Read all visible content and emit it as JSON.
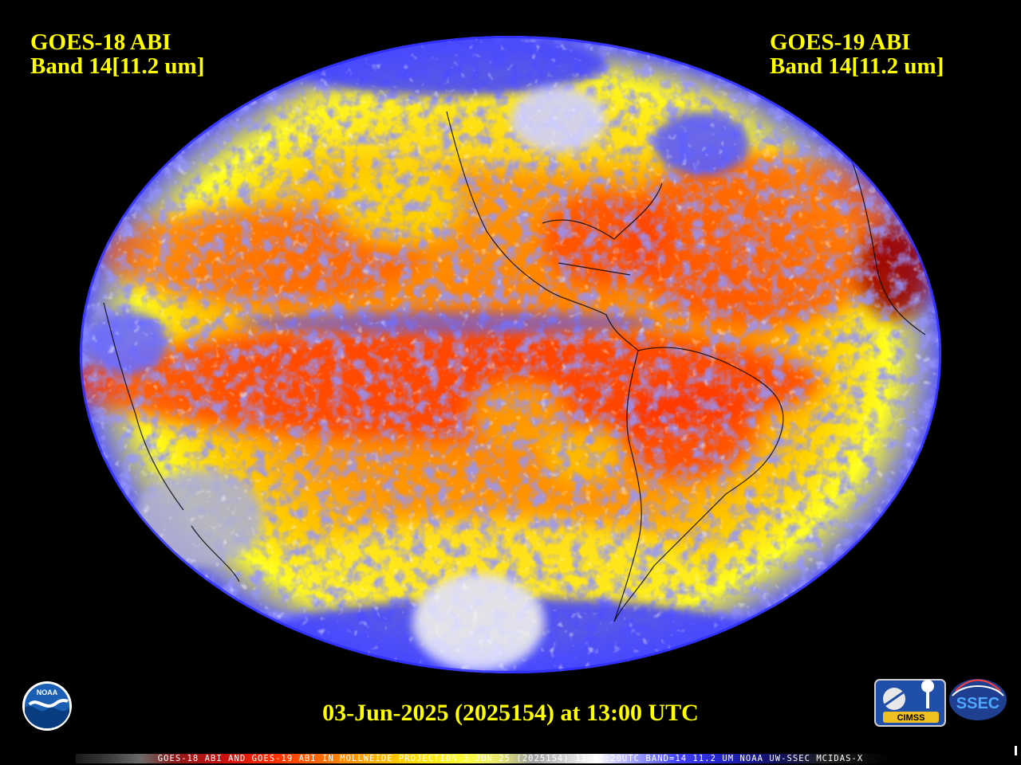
{
  "header": {
    "left_satellite": "GOES-18 ABI",
    "left_band": "Band 14[11.2 um]",
    "right_satellite": "GOES-19 ABI",
    "right_band": "Band 14[11.2 um]"
  },
  "timestamp": "03-Jun-2025 (2025154) at 13:00 UTC",
  "footer": {
    "caption": "GOES-18 ABI AND GOES-19 ABI IN MOLLWEIDE PROJECTION 3 JUN 25 (2025154) 13:00:20UTC BAND=14 11.2 UM NOAA UW-SSEC MCIDAS-X"
  },
  "logos": {
    "noaa": "NOAA",
    "cimss": "CIMSS",
    "ssec": "SSEC"
  },
  "colors": {
    "title": "#ffff00",
    "background": "#000000",
    "warm_core": "#ff3300",
    "warm_mid": "#ff8800",
    "warm_edge": "#ffee00",
    "cloud_blue": "#3a3aff",
    "cloud_white": "#e8e8ff"
  },
  "map": {
    "projection": "Mollweide",
    "coastlines": true
  }
}
